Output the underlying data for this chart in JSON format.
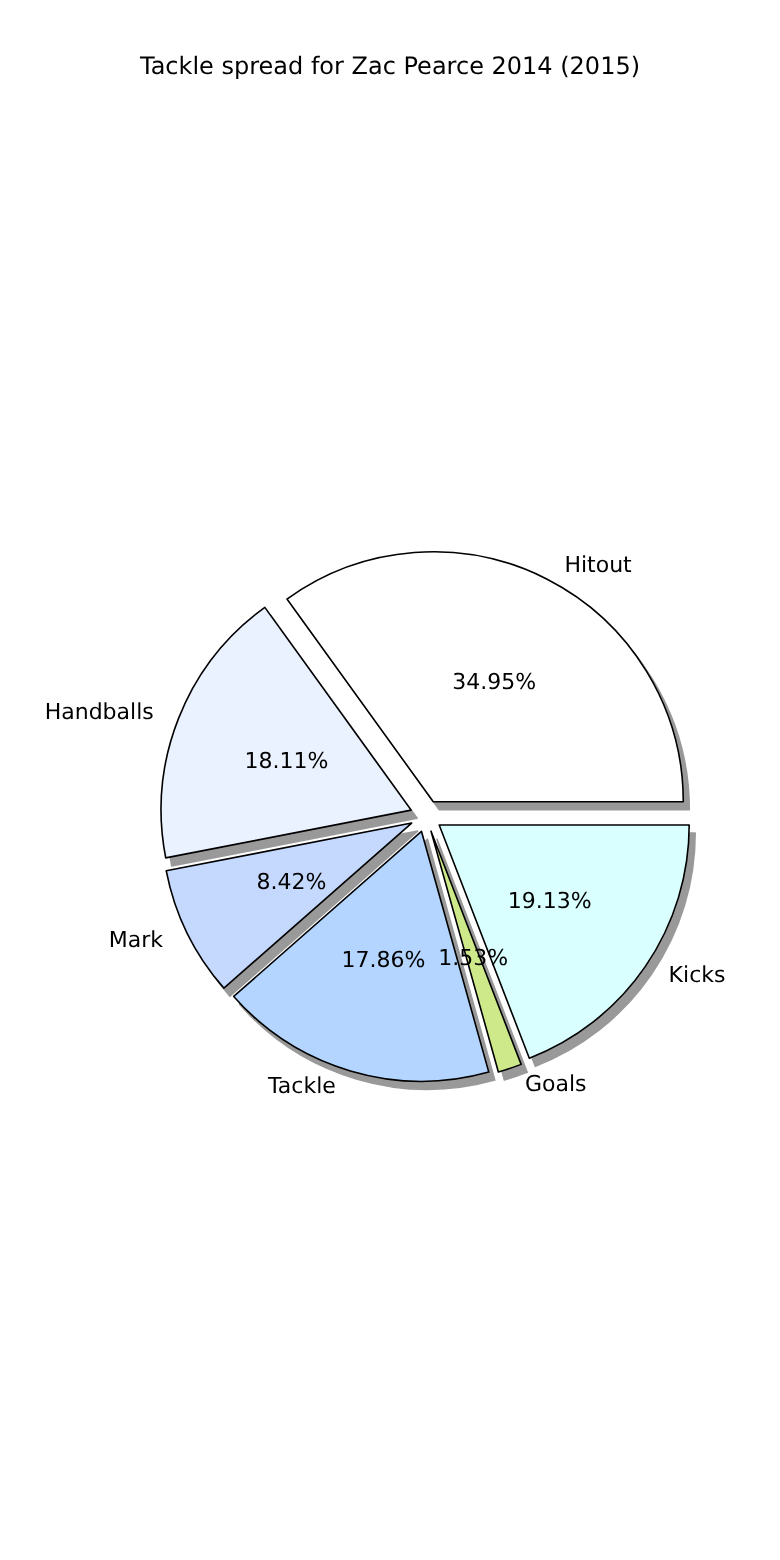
{
  "chart_data": {
    "type": "pie",
    "title": "Tackle spread for Zac Pearce 2014 (2015)",
    "categories": [
      "Hitout",
      "Handballs",
      "Mark",
      "Tackle",
      "Goals",
      "Kicks"
    ],
    "values": [
      34.95,
      18.11,
      8.42,
      17.86,
      1.53,
      19.13
    ],
    "colors": [
      "#ffffff",
      "#eaf1ff",
      "#c5d9ff",
      "#b3d5ff",
      "#cde98a",
      "#d9ffff"
    ],
    "value_labels": [
      "34.95%",
      "18.11%",
      "8.42%",
      "17.86%",
      "1.53%",
      "19.13%"
    ],
    "legend": false
  }
}
